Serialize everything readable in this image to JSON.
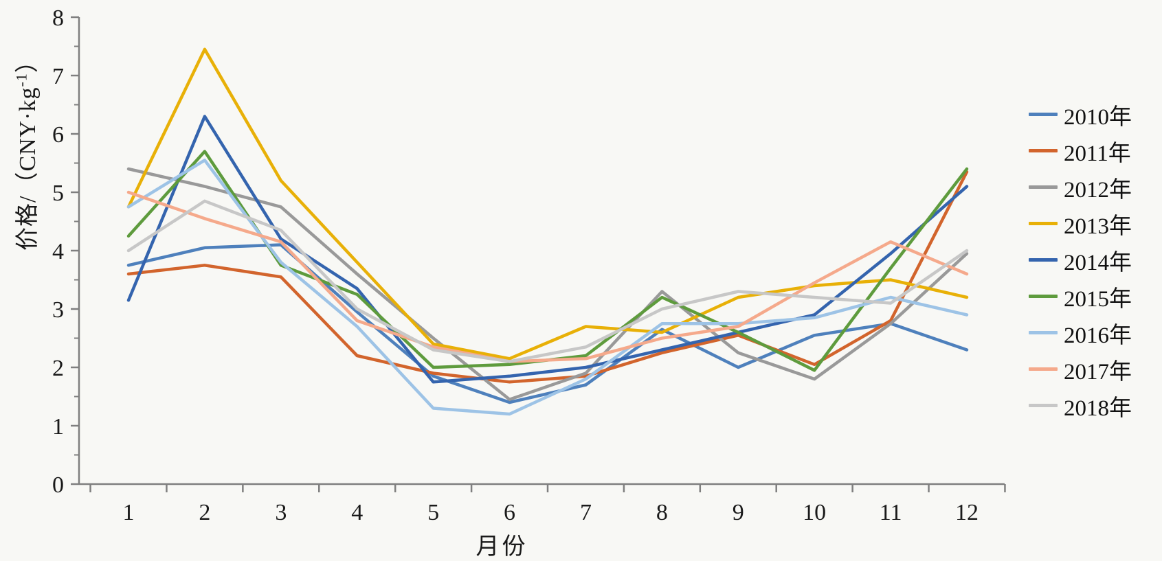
{
  "chart_data": {
    "type": "line",
    "title": "",
    "xlabel": "月份",
    "ylabel": "价格/（CNY·kg-1）",
    "ylabel_main": "价格/（CNY·kg",
    "ylabel_sup": "-1",
    "ylabel_close": "）",
    "x": [
      1,
      2,
      3,
      4,
      5,
      6,
      7,
      8,
      9,
      10,
      11,
      12
    ],
    "xlim": [
      0.5,
      12.5
    ],
    "ylim": [
      0,
      8
    ],
    "y_major_ticks": [
      0,
      1,
      2,
      3,
      4,
      5,
      6,
      7,
      8
    ],
    "y_minor_step": 0.5,
    "grid": false,
    "legend_position": "right",
    "axis_color": "#7f7f7f",
    "text_color": "#1a1a1a",
    "background_color": "#f8f8f5",
    "series": [
      {
        "name": "2010年",
        "color": "#4e80bc",
        "values": [
          3.75,
          4.05,
          4.1,
          2.95,
          1.85,
          1.4,
          1.7,
          2.65,
          2.0,
          2.55,
          2.75,
          2.3
        ]
      },
      {
        "name": "2011年",
        "color": "#d2642c",
        "values": [
          3.6,
          3.75,
          3.55,
          2.2,
          1.9,
          1.75,
          1.85,
          2.25,
          2.55,
          2.05,
          2.8,
          5.35
        ]
      },
      {
        "name": "2012年",
        "color": "#999999",
        "values": [
          5.4,
          5.1,
          4.75,
          3.6,
          2.5,
          1.45,
          1.9,
          3.3,
          2.25,
          1.8,
          2.75,
          3.95
        ]
      },
      {
        "name": "2013年",
        "color": "#e8b007",
        "values": [
          4.75,
          7.45,
          5.2,
          3.8,
          2.4,
          2.15,
          2.7,
          2.6,
          3.2,
          3.4,
          3.5,
          3.2
        ]
      },
      {
        "name": "2014年",
        "color": "#3464ae",
        "values": [
          3.15,
          6.3,
          4.2,
          3.35,
          1.75,
          1.85,
          2.0,
          2.3,
          2.6,
          2.9,
          3.95,
          5.1
        ]
      },
      {
        "name": "2015年",
        "color": "#5e9b3d",
        "values": [
          4.25,
          5.7,
          3.75,
          3.25,
          2.0,
          2.05,
          2.2,
          3.2,
          2.6,
          1.95,
          3.7,
          5.4
        ]
      },
      {
        "name": "2016年",
        "color": "#9dc3e6",
        "values": [
          4.75,
          5.55,
          3.8,
          2.7,
          1.3,
          1.2,
          1.8,
          2.75,
          2.75,
          2.85,
          3.2,
          2.9
        ]
      },
      {
        "name": "2017年",
        "color": "#f5a98b",
        "values": [
          5.0,
          4.55,
          4.15,
          2.8,
          2.35,
          2.1,
          2.15,
          2.5,
          2.7,
          3.45,
          4.15,
          3.6
        ]
      },
      {
        "name": "2018年",
        "color": "#c7c7c7",
        "values": [
          4.0,
          4.85,
          4.35,
          3.0,
          2.3,
          2.1,
          2.35,
          3.0,
          3.3,
          3.2,
          3.1,
          4.0
        ]
      }
    ]
  }
}
